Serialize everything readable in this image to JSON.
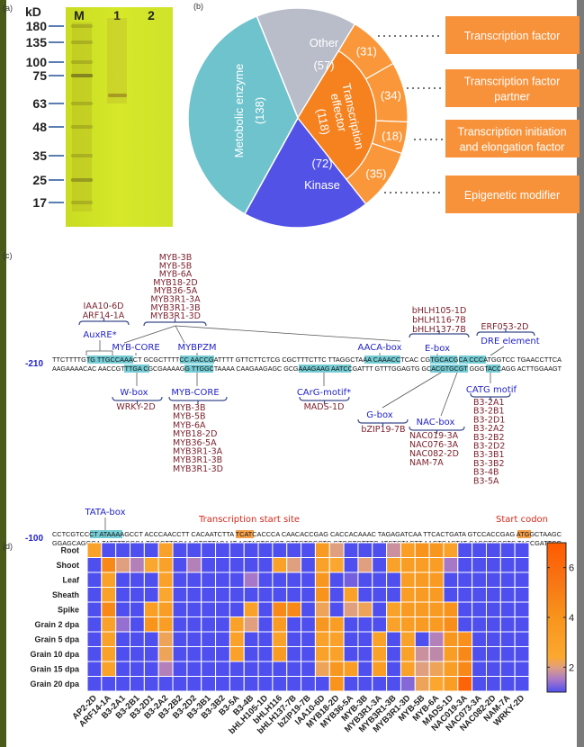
{
  "panel_labels": {
    "a": "(a)",
    "b": "(b)",
    "c": "(c)",
    "d": "(d)"
  },
  "gel": {
    "unit": "kD",
    "lanes": [
      "M",
      "1",
      "2"
    ],
    "markers": [
      "180",
      "135",
      "100",
      "75",
      "63",
      "48",
      "35",
      "25",
      "17"
    ],
    "colors": {
      "membrane": "#d2e424",
      "band": "#8a7a1c"
    }
  },
  "pie": {
    "slices": [
      {
        "label": "Other",
        "value": 57,
        "color": "#b9bcc9"
      },
      {
        "label": "Transcription effector",
        "label_lines": [
          "Transcription",
          "effector"
        ],
        "value": 118,
        "color": "#f5821f"
      },
      {
        "label": "Kinase",
        "value": 72,
        "color": "#5252e6"
      },
      {
        "label": "Metobolic enzyme",
        "value": 138,
        "color": "#6fc3cd"
      }
    ],
    "effector_subgroups": [
      {
        "label": "Transcription factor",
        "label_lines": [
          "Transcription factor"
        ],
        "value": 31
      },
      {
        "label": "Transcription factor partner",
        "label_lines": [
          "Transcription factor",
          "partner"
        ],
        "value": 34
      },
      {
        "label": "Transcription initiation and elongation factor",
        "label_lines": [
          "Transcription initiation",
          "and  elongation factor"
        ],
        "value": 18
      },
      {
        "label": "Epigenetic modifier",
        "label_lines": [
          "Epigenetic modifier"
        ],
        "value": 35
      }
    ],
    "subgroup_color": "#f9973a",
    "box_color": "#f7923a"
  },
  "promoter": {
    "rows": [
      {
        "position": "-210",
        "top": "TTCTTTTGTG TTGCCAAACT GCGCTTTTCC AACCGATTTT GTTCTTCTCG CGCTTTCTTC TTAGGCTAAA CAAACCTCAC CGTGCACGCA CCCATGGTCC TGAACCTTCA",
        "bottom": "AAGAAAACAC AACCGTTTGA CGCGAAAAGG TTGGCTAAAA CAAGAAGAGC GCGAAAGAAG AATCCGATTT GTTTGGAGTG GCACGTGCGT GGGTACCAGG ACTTGGAAGT"
      },
      {
        "position": "-100",
        "top": "CCTCGTCCCT ATAAAAGCCT ACCCAACCTT CACAATCTTA TCATCACCCA CAACACCGAG CACCACAAAC TAGAGATCAA TTCACTGATA GTCCACCGAG ATGGCTAAGC",
        "bottom": "GGAGCAGGGA TATTTTCGGA TGGGTTGGAA GTGTTAGAAT AGTAGTGGGT GTTGTGGCTC GTGGTGTTTG ATCTCTAGTT AAGTGACTAT CAGGTGGCTC TACCGATTCG"
      }
    ],
    "upper_groups": [
      {
        "elements": [
          "AuxRE*"
        ],
        "factors": [
          "IAA10-6D",
          "ARF14-1A"
        ]
      },
      {
        "elements": [
          "MYB-CORE",
          "MYBPZM",
          "AACA-box"
        ],
        "factors": [
          "MYB-3B",
          "MYB-5B",
          "MYB-6A",
          "MYB18-2D",
          "MYB36-5A",
          "MYB3R1-3A",
          "MYB3R1-3B",
          "MYB3R1-3D"
        ]
      },
      {
        "elements": [
          "E-box"
        ],
        "factors": [
          "bHLH105-1D",
          "bHLH116-7B",
          "bHLH137-7B"
        ]
      },
      {
        "elements": [
          "DRE element"
        ],
        "factors": [
          "ERF053-2D"
        ]
      }
    ],
    "lower_groups": [
      {
        "elements": [
          "W-box"
        ],
        "factors": [
          "WRKY-2D"
        ]
      },
      {
        "elements": [
          "MYB-CORE"
        ],
        "factors": [
          "MYB-3B",
          "MYB-5B",
          "MYB-6A",
          "MYB18-2D",
          "MYB36-5A",
          "MYB3R1-3A",
          "MYB3R1-3B",
          "MYB3R1-3D"
        ]
      },
      {
        "elements": [
          "CArG-motif*"
        ],
        "factors": [
          "MADS-1D"
        ]
      },
      {
        "elements": [
          "G-box"
        ],
        "factors": [
          "bZIP19-7B"
        ]
      },
      {
        "elements": [
          "NAC-box"
        ],
        "factors": [
          "NAC019-3A",
          "NAC076-3A",
          "NAC082-2D",
          "NAM-7A"
        ]
      },
      {
        "elements": [
          "CATG motif"
        ],
        "factors": [
          "B3-2A1",
          "B3-2B1",
          "B3-2D1",
          "B3-2A2",
          "B3-2B2",
          "B3-2D2",
          "B3-3B1",
          "B3-3B2",
          "B3-4B",
          "B3-5A"
        ]
      }
    ],
    "landmarks": {
      "tata": "TATA-box",
      "tss": "Transcription start site",
      "start_codon": "Start codon"
    },
    "colors": {
      "element": "#2323c8",
      "factor": "#7a1f2b",
      "landmark": "#d42a1c",
      "motif_highlight": "#5ec3cc",
      "site_highlight": "#f5902a"
    }
  },
  "chart_data": [
    {
      "type": "pie",
      "categories": [
        "Other",
        "Transcription effector",
        "Kinase",
        "Metobolic enzyme"
      ],
      "values": [
        57,
        118,
        72,
        138
      ],
      "sub_breakdown": {
        "of": "Transcription effector",
        "categories": [
          "Transcription factor",
          "Transcription factor partner",
          "Transcription initiation and elongation factor",
          "Epigenetic modifier"
        ],
        "values": [
          31,
          34,
          18,
          35
        ]
      }
    },
    {
      "type": "heatmap",
      "rows": [
        "Root",
        "Shoot",
        "Leaf",
        "Sheath",
        "Spike",
        "Grain 2 dpa",
        "Grain 5 dpa",
        "Grain 10 dpa",
        "Grain 15 dpa",
        "Grain 20 dpa"
      ],
      "columns": [
        "AP2-2D",
        "ARF14-1A",
        "B3-2A1",
        "B3-2B1",
        "B3-2D1",
        "B3-2A2",
        "B3-2B2",
        "B3-2D2",
        "B3-3B1",
        "B3-3B2",
        "B3-5A",
        "B3-4B",
        "bHLH105-1D",
        "bHLH116",
        "bHLH137-7B",
        "bZIP19-7B",
        "IAA10-6D",
        "MYB18-2D",
        "MYB36-5A",
        "MYB-3B",
        "MYB3R1-3A",
        "MYB3R1-3B",
        "MYB3R1-3D",
        "MYB-5B",
        "MYB-6A",
        "MADS-1D",
        "NAC019-3A",
        "NAC073-3A",
        "NAC082-2D",
        "NAM-7A",
        "WRKY-2D"
      ],
      "values": [
        [
          3,
          1,
          1,
          1,
          1,
          3,
          1,
          1,
          1,
          1,
          1,
          1,
          1,
          1,
          1,
          1,
          3.5,
          2,
          1,
          1,
          1,
          1.8,
          3.2,
          4,
          3.8,
          3,
          1,
          1,
          1,
          1,
          1
        ],
        [
          1,
          4.5,
          2,
          1.6,
          2.5,
          3,
          1,
          1.6,
          1,
          1,
          1,
          1,
          1,
          3,
          2,
          1,
          3,
          2.5,
          1,
          2,
          1,
          3,
          3.3,
          3.3,
          3.3,
          1.5,
          1,
          1,
          1,
          1,
          1
        ],
        [
          1,
          3,
          1,
          1,
          1,
          3,
          1,
          1,
          1,
          1,
          1,
          1.5,
          1,
          1,
          1,
          1,
          3.8,
          1,
          1.2,
          1,
          1,
          1,
          3.3,
          3.5,
          3.5,
          1,
          1,
          1,
          1,
          1,
          1
        ],
        [
          1,
          3,
          1,
          1,
          1,
          2.5,
          1,
          1,
          1,
          1,
          1,
          1,
          1,
          1,
          1,
          1,
          4,
          1,
          3,
          1,
          1,
          1,
          3.3,
          3.5,
          3.5,
          1,
          1,
          1,
          1,
          1,
          1
        ],
        [
          1,
          4.5,
          1,
          1,
          3.2,
          3.3,
          1,
          1,
          1,
          1,
          1,
          3,
          1,
          4.5,
          4.5,
          1,
          2.2,
          1,
          2,
          2.2,
          1,
          3,
          3.5,
          3.5,
          3.5,
          4,
          1,
          1,
          1,
          1,
          1
        ],
        [
          1,
          3,
          1.4,
          1,
          4,
          3.3,
          1,
          1,
          1,
          1,
          3,
          2,
          1,
          3.5,
          1,
          1,
          3.8,
          3.3,
          1,
          1,
          1,
          3,
          3.3,
          3.5,
          3.5,
          4.3,
          1,
          1,
          1,
          1,
          1
        ],
        [
          1,
          3,
          1,
          1,
          1,
          2.2,
          1,
          1,
          1,
          1,
          3,
          1,
          1,
          3,
          1,
          1,
          3,
          3,
          1,
          1,
          3,
          1,
          3,
          1,
          1.6,
          3.8,
          4.2,
          1,
          1,
          1,
          1
        ],
        [
          1,
          3,
          1,
          1,
          1,
          2.2,
          1,
          1,
          1,
          1,
          3,
          1,
          1,
          3.5,
          1,
          1,
          3,
          3,
          1,
          1,
          3,
          1,
          3,
          1.8,
          1.7,
          3.3,
          4.5,
          1,
          1,
          1,
          1
        ],
        [
          1,
          3,
          1,
          1,
          1,
          1.6,
          1,
          1,
          1,
          1,
          1,
          1,
          1,
          1,
          1,
          1,
          2.2,
          3.8,
          3.3,
          1,
          3.3,
          1,
          3,
          2,
          2.2,
          3.3,
          4.5,
          1,
          1,
          1,
          1
        ],
        [
          1,
          1,
          1,
          1,
          1,
          1,
          1,
          1,
          1,
          1,
          1,
          1,
          1,
          1,
          1,
          1,
          1,
          4,
          1,
          1,
          1,
          1,
          1.3,
          2.2,
          2.5,
          3.3,
          6.5,
          1,
          1,
          1,
          1
        ]
      ],
      "colorbar": {
        "range": [
          1,
          7
        ],
        "ticks": [
          "2",
          "4",
          "6"
        ],
        "stops": [
          [
            1,
            "#4f4ff0"
          ],
          [
            1.5,
            "#a878c8"
          ],
          [
            2,
            "#e0a080"
          ],
          [
            2.4,
            "#fba830"
          ],
          [
            4,
            "#f8941c"
          ],
          [
            5.5,
            "#f87414"
          ],
          [
            7,
            "#ff5a00"
          ]
        ]
      }
    }
  ]
}
